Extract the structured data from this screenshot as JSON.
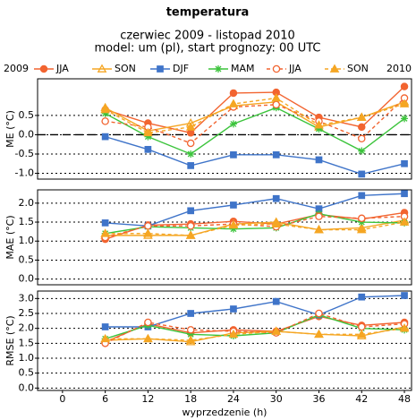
{
  "chart_data": [
    {
      "type": "line",
      "title": "temperatura",
      "subtitle": [
        "czerwiec 2009 - listopad 2010",
        "model: um (pl), start prognozy: 00 UTC"
      ],
      "legend_prefix": "2009",
      "legend_suffix": "2010",
      "ylabel": "ME (°C)",
      "zero_line": true,
      "grid": true,
      "x": [
        6,
        12,
        18,
        24,
        30,
        36,
        42,
        48
      ],
      "xlim": [
        -3.5,
        49
      ],
      "ylim": [
        -1.15,
        1.45
      ],
      "yticks": [
        {
          "value": -1,
          "label": "-1.0"
        },
        -0.5,
        {
          "value": 0,
          "label": "0.0"
        },
        0.5
      ],
      "series": [
        {
          "name": "JJA",
          "color": "#f26430",
          "marker": "circle",
          "dashed": false,
          "values": [
            0.65,
            0.3,
            0.05,
            1.08,
            1.1,
            0.45,
            0.2,
            1.25
          ]
        },
        {
          "name": "SON",
          "color": "#f5a623",
          "marker": "triangle-open",
          "dashed": false,
          "values": [
            0.7,
            0.1,
            0.3,
            0.75,
            0.85,
            0.2,
            0.45,
            0.85
          ]
        },
        {
          "name": "DJF",
          "color": "#3f74c9",
          "marker": "square",
          "dashed": false,
          "values": [
            -0.05,
            -0.38,
            -0.8,
            -0.52,
            -0.52,
            -0.65,
            -1.02,
            -0.75
          ]
        },
        {
          "name": "MAM",
          "color": "#3cc43c",
          "marker": "star",
          "dashed": false,
          "values": [
            0.55,
            -0.05,
            -0.5,
            0.28,
            0.7,
            0.15,
            -0.42,
            0.42
          ]
        },
        {
          "name": "JJA",
          "color": "#f26430",
          "marker": "circle-open",
          "dashed": true,
          "values": [
            0.35,
            0.2,
            -0.22,
            0.72,
            0.78,
            0.35,
            -0.1,
            0.95
          ]
        },
        {
          "name": "SON",
          "color": "#f5a623",
          "marker": "triangle",
          "dashed": true,
          "values": [
            0.65,
            0.05,
            0.2,
            0.8,
            0.95,
            0.25,
            0.45,
            0.8
          ]
        }
      ]
    },
    {
      "type": "line",
      "ylabel": "MAE (°C)",
      "grid": true,
      "x": [
        6,
        12,
        18,
        24,
        30,
        36,
        42,
        48
      ],
      "xlim": [
        -3.5,
        49
      ],
      "ylim": [
        -0.15,
        2.35
      ],
      "yticks": [
        {
          "value": 0,
          "label": "0.0"
        },
        0.5,
        {
          "value": 1,
          "label": "1.0"
        },
        1.5,
        {
          "value": 2,
          "label": "2.0"
        }
      ],
      "series": [
        {
          "color": "#f26430",
          "marker": "circle",
          "dashed": false,
          "values": [
            1.05,
            1.42,
            1.45,
            1.52,
            1.45,
            1.7,
            1.58,
            1.75
          ]
        },
        {
          "color": "#f5a623",
          "marker": "triangle-open",
          "dashed": false,
          "values": [
            1.15,
            1.15,
            1.15,
            1.45,
            1.5,
            1.3,
            1.35,
            1.55
          ]
        },
        {
          "color": "#3f74c9",
          "marker": "square",
          "dashed": false,
          "values": [
            1.48,
            1.4,
            1.8,
            1.95,
            2.12,
            1.85,
            2.2,
            2.25
          ]
        },
        {
          "color": "#3cc43c",
          "marker": "star",
          "dashed": false,
          "values": [
            1.2,
            1.38,
            1.35,
            1.32,
            1.35,
            1.72,
            1.5,
            1.48
          ]
        },
        {
          "color": "#f26430",
          "marker": "circle-open",
          "dashed": true,
          "values": [
            1.1,
            1.4,
            1.4,
            1.45,
            1.38,
            1.65,
            1.6,
            1.65
          ]
        },
        {
          "color": "#f5a623",
          "marker": "triangle",
          "dashed": true,
          "values": [
            1.2,
            1.2,
            1.15,
            1.42,
            1.45,
            1.3,
            1.3,
            1.5
          ]
        }
      ]
    },
    {
      "type": "line",
      "ylabel": "RMSE (°C)",
      "xlabel": "wyprzedzenie (h)",
      "grid": true,
      "x": [
        6,
        12,
        18,
        24,
        30,
        36,
        42,
        48
      ],
      "xlim": [
        -3.5,
        49
      ],
      "xticks": [
        0,
        6,
        12,
        18,
        24,
        30,
        36,
        42,
        48
      ],
      "ylim": [
        -0.08,
        3.25
      ],
      "yticks": [
        {
          "value": 0,
          "label": "0.0"
        },
        0.5,
        {
          "value": 1,
          "label": "1.0"
        },
        1.5,
        {
          "value": 2,
          "label": "2.0"
        },
        2.5,
        {
          "value": 3,
          "label": "3.0"
        }
      ],
      "series": [
        {
          "color": "#f26430",
          "marker": "circle",
          "dashed": false,
          "values": [
            1.55,
            2.15,
            1.85,
            1.95,
            1.9,
            2.4,
            2.1,
            2.2
          ]
        },
        {
          "color": "#f5a623",
          "marker": "triangle-open",
          "dashed": false,
          "values": [
            1.6,
            1.65,
            1.55,
            1.85,
            1.9,
            1.8,
            1.75,
            2.05
          ]
        },
        {
          "color": "#3f74c9",
          "marker": "square",
          "dashed": false,
          "values": [
            2.05,
            2.05,
            2.5,
            2.65,
            2.9,
            2.45,
            3.05,
            3.1
          ]
        },
        {
          "color": "#3cc43c",
          "marker": "star",
          "dashed": false,
          "values": [
            1.65,
            2.1,
            1.8,
            1.75,
            1.85,
            2.45,
            2.0,
            1.95
          ]
        },
        {
          "color": "#f26430",
          "marker": "circle-open",
          "dashed": true,
          "values": [
            1.5,
            2.2,
            1.95,
            1.9,
            1.85,
            2.5,
            2.05,
            2.15
          ]
        },
        {
          "color": "#f5a623",
          "marker": "triangle",
          "dashed": true,
          "values": [
            1.65,
            1.65,
            1.6,
            1.8,
            1.9,
            1.8,
            1.8,
            2.0
          ]
        }
      ]
    }
  ]
}
